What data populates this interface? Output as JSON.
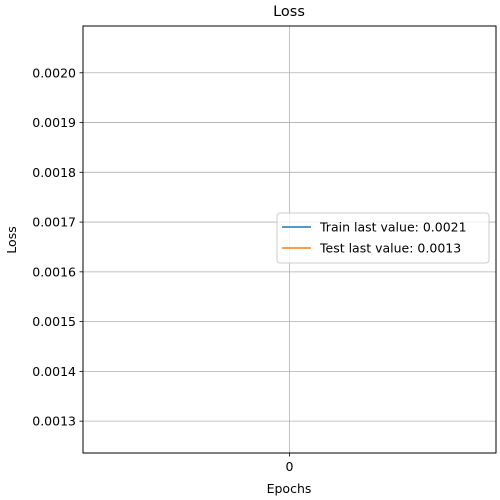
{
  "chart_data": {
    "type": "line",
    "title": "Loss",
    "xlabel": "Epochs",
    "ylabel": "Loss",
    "x_ticks": [
      0
    ],
    "xlim": [
      -0.055,
      0.055
    ],
    "y_ticks": [
      0.0013,
      0.0014,
      0.0015,
      0.0016,
      0.0017,
      0.0018,
      0.0019,
      0.002
    ],
    "y_tick_labels": [
      "0.0013",
      "0.0014",
      "0.0015",
      "0.0016",
      "0.0017",
      "0.0018",
      "0.0019",
      "0.0020"
    ],
    "ylim": [
      0.001236,
      0.002094
    ],
    "grid": true,
    "legend_position": "center-right",
    "series": [
      {
        "name": "Train last value: 0.0021",
        "color": "#1f77b4",
        "x": [
          0
        ],
        "y": [
          0.0021
        ]
      },
      {
        "name": "Test last value: 0.0013",
        "color": "#ff7f0e",
        "x": [
          0
        ],
        "y": [
          0.0013
        ]
      }
    ]
  }
}
